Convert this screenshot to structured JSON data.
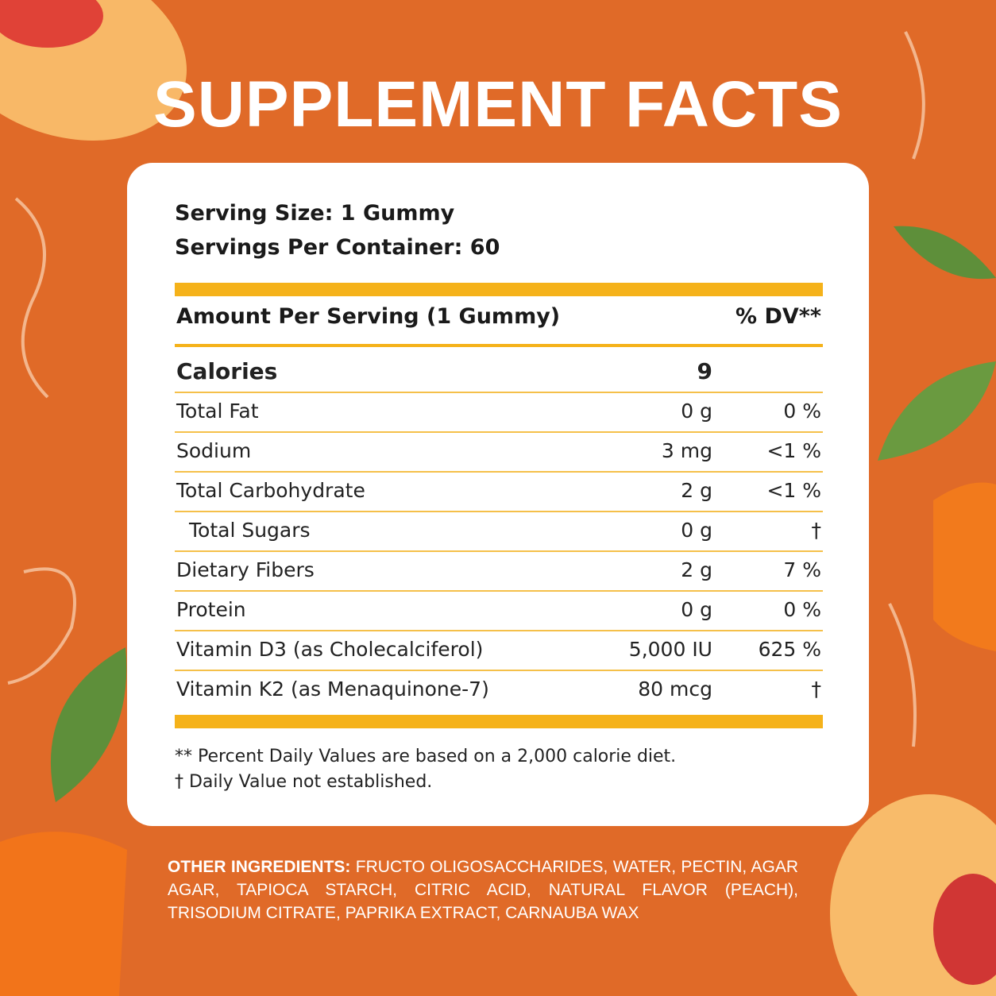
{
  "header": {
    "title": "SUPPLEMENT FACTS"
  },
  "serving": {
    "size": "Serving Size: 1 Gummy",
    "per_container": "Servings Per Container: 60"
  },
  "table": {
    "header": [
      "Amount Per Serving (1 Gummy)",
      "% DV**"
    ],
    "rows": [
      [
        "Calories",
        "9"
      ],
      [
        "Total Fat",
        "0 g",
        "0 %"
      ],
      [
        "Sodium",
        "3 mg",
        "<1 %"
      ],
      [
        "Total Carbohydrate",
        "2 g",
        "<1 %"
      ],
      [
        "Total Sugars",
        "0 g",
        "†"
      ],
      [
        "Dietary Fibers",
        "2 g",
        "7 %"
      ],
      [
        "Protein",
        "0 g",
        "0 %"
      ],
      [
        "Vitamin D3 (as Cholecalciferol)",
        "5,000 IU",
        "625 %"
      ],
      [
        "Vitamin K2 (as Menaquinone-7)",
        "80 mcg",
        "†"
      ]
    ]
  },
  "footnotes": [
    "** Percent Daily Values are based on a 2,000 calorie diet.",
    "† Daily Value not established."
  ],
  "ingredients": {
    "label": "OTHER INGREDIENTS:",
    "text": "FRUCTO OLIGOSACCHARIDES, WATER, PECTIN, AGAR AGAR, TAPIOCA STARCH, CITRIC ACID, NATURAL FLAVOR (PEACH), TRISODIUM CITRATE, PAPRIKA EXTRACT, CARNAUBA WAX"
  }
}
